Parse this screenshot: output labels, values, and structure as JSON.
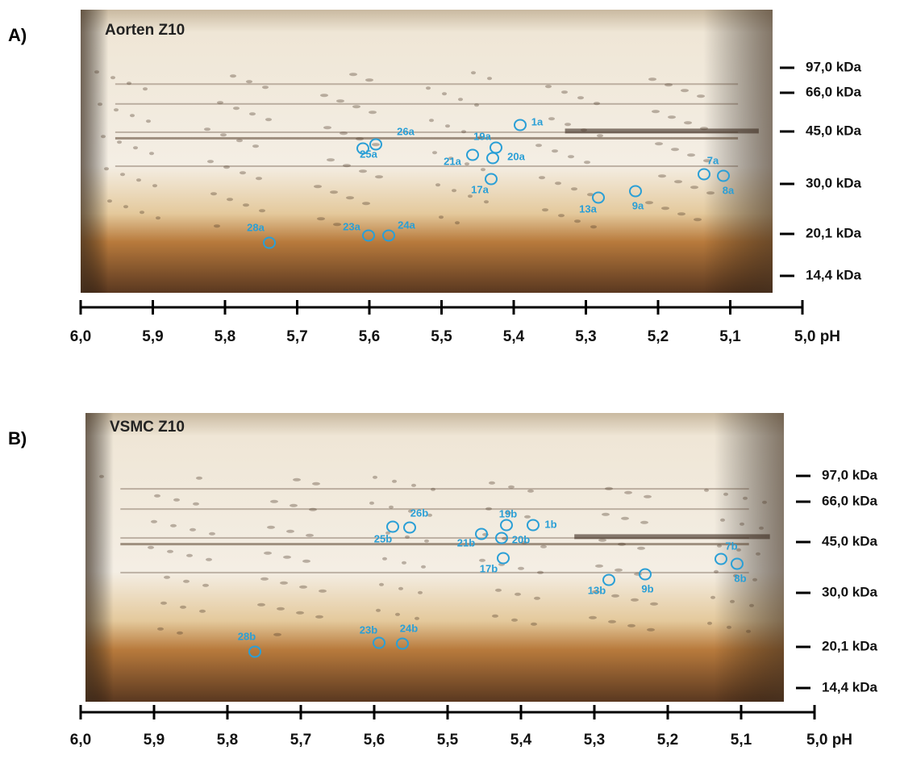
{
  "panels": [
    {
      "label": "A)",
      "title": "Aorten Z10",
      "markers": [
        "97,0 kDa",
        "66,0 kDa",
        "45,0 kDa",
        "30,0 kDa",
        "20,1 kDa",
        "14,4 kDa"
      ],
      "spots": [
        "1a",
        "26a",
        "25a",
        "19a",
        "21a",
        "20a",
        "17a",
        "7a",
        "8a",
        "13a",
        "9a",
        "28a",
        "23a",
        "24a"
      ],
      "ph_axis": [
        "6,0",
        "5,9",
        "5,8",
        "5,7",
        "5,6",
        "5,5",
        "5,4",
        "5,3",
        "5,2",
        "5,1",
        "5,0 pH"
      ]
    },
    {
      "label": "B)",
      "title": "VSMC Z10",
      "markers": [
        "97,0 kDa",
        "66,0 kDa",
        "45,0 kDa",
        "30,0 kDa",
        "20,1 kDa",
        "14,4 kDa"
      ],
      "spots": [
        "1b",
        "26b",
        "25b",
        "19b",
        "21b",
        "20b",
        "17b",
        "7b",
        "8b",
        "13b",
        "9b",
        "28b",
        "23b",
        "24b"
      ],
      "ph_axis": [
        "6,0",
        "5,9",
        "5,8",
        "5,7",
        "5,6",
        "5,5",
        "5,4",
        "5,3",
        "5,2",
        "5,1",
        "5,0 pH"
      ]
    }
  ]
}
